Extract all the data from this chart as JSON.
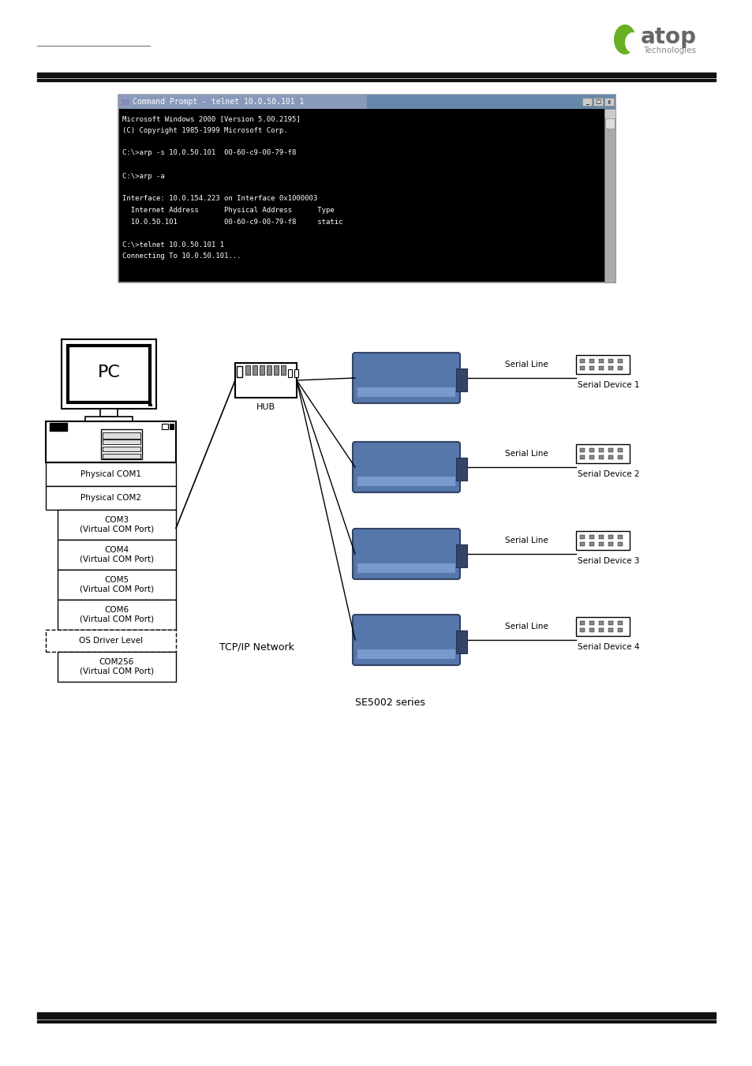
{
  "bg_color": "#ffffff",
  "header_line_color": "#888888",
  "thick_line_color": "#111111",
  "logo_green": "#6ab023",
  "logo_gray": "#777777",
  "terminal_title": "Command Prompt - telnet 10.0.50.101 1",
  "terminal_title_bg": "#aabbdd",
  "terminal_bg": "#000000",
  "terminal_fg": "#ffffff",
  "terminal_lines": [
    "Microsoft Windows 2000 [Version 5.00.2195]",
    "(C) Copyright 1985-1999 Microsoft Corp.",
    "",
    "C:\\>arp -s 10.0.50.101  00-60-c9-00-79-f8",
    "",
    "C:\\>arp -a",
    "",
    "Interface: 10.0.154.223 on Interface 0x1000003",
    "  Internet Address      Physical Address      Type",
    "  10.0.50.101           00-60-c9-00-79-f8     static",
    "",
    "C:\\>telnet 10.0.50.101 1",
    "Connecting To 10.0.50.101..."
  ],
  "pc_label": "PC",
  "hub_label": "HUB",
  "network_label": "TCP/IP Network",
  "se_label": "SE5002 series",
  "com_labels": [
    "Physical COM1",
    "Physical COM2",
    "COM3\n(Virtual COM Port)",
    "COM4\n(Virtual COM Port)",
    "COM5\n(Virtual COM Port)",
    "COM6\n(Virtual COM Port)",
    "OS Driver Level",
    "COM256\n(Virtual COM Port)"
  ],
  "serial_device_labels": [
    "Serial Device 1",
    "Serial Device 2",
    "Serial Device 3",
    "Serial Device 4"
  ],
  "footer_line_color": "#111111"
}
